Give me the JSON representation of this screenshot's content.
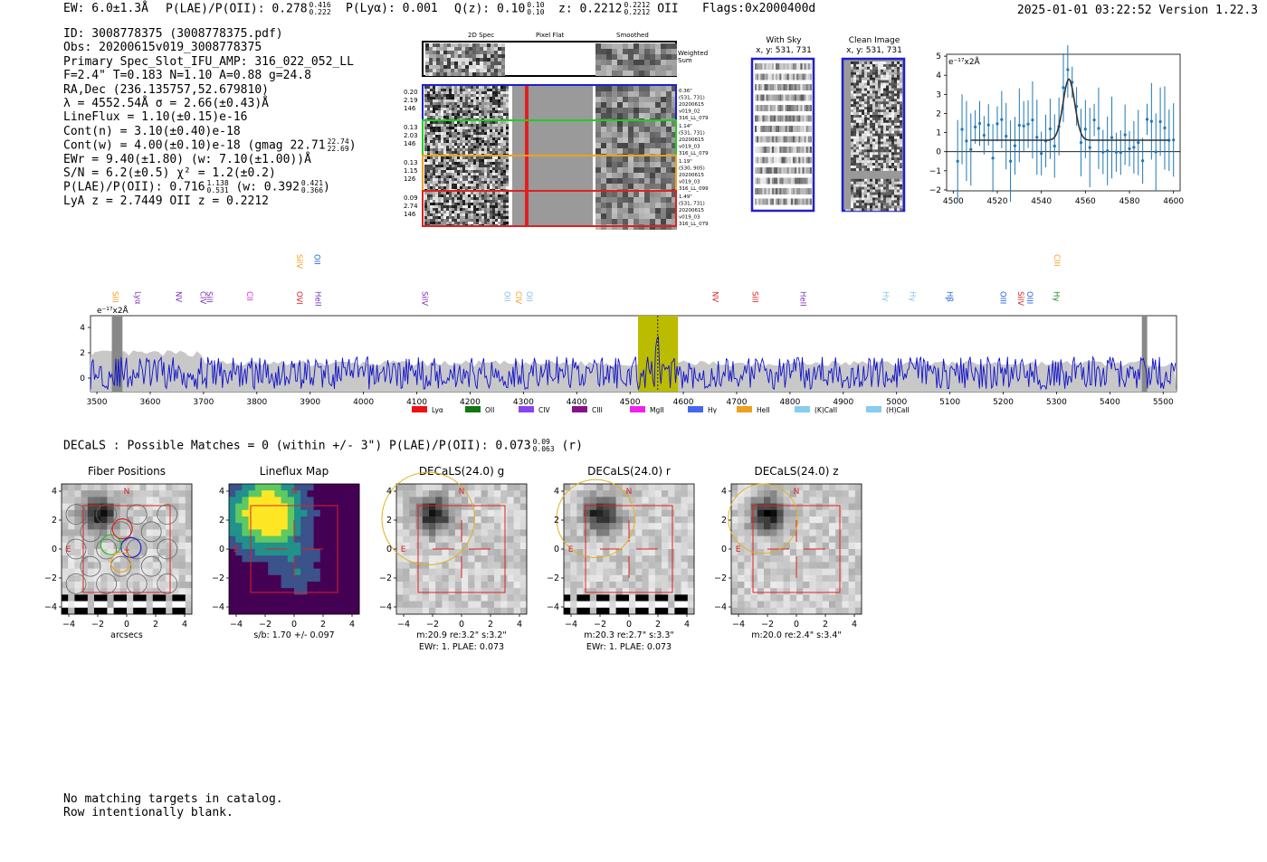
{
  "header": {
    "ew": "EW: 6.0±1.3Å",
    "plae_label": "P(LAE)/P(OII): 0.278",
    "plae_hi": "0.416",
    "plae_lo": "0.222",
    "plya": "P(Lyα): 0.001",
    "qz_label": "Q(z): 0.10",
    "qz_hi": "0.10",
    "qz_lo": "0.10",
    "z_label": "z: 0.2212",
    "z_hi": "0.2212",
    "z_lo": "0.2212",
    "z_line": "OII",
    "flags": "Flags:0x2000400d",
    "timestamp": "2025-01-01 03:22:52  Version 1.22.3"
  },
  "info": {
    "id": "ID: 3008778375 (3008778375.pdf)",
    "obs": "Obs: 20200615v019_3008778375",
    "primary": "Primary Spec_Slot_IFU_AMP: 316_022_052_LL",
    "fparams": "F=2.4\"  T=0.183  N=1.10  A=0.88  g=24.8",
    "radec": "RA,Dec (236.135757,52.679810)",
    "lambda": "λ = 4552.54Å  σ = 2.66(±0.43)Å",
    "lineflux": "LineFlux = 1.10(±0.15)e-16",
    "contn": "Cont(n) = 3.10(±0.40)e-18",
    "contw": "Cont(w) = 4.00(±0.10)e-18 (gmag 22.71",
    "contw_hi": "22.74",
    "contw_lo": "22.69",
    "ewr": "EWr = 9.40(±1.80) (w: 7.10(±1.00))Å",
    "sn": "S/N = 6.2(±0.5)  χ² = 1.2(±0.2)",
    "plae2": "P(LAE)/P(OII): 0.716",
    "plae2_hi": "1.138",
    "plae2_lo": "0.531",
    "plae2_w": "(w: 0.392",
    "plae2_w_hi": "0.421",
    "plae2_w_lo": "0.366",
    "lyaz": "LyA z = 2.7449  OII z = 0.2212"
  },
  "spec_panel": {
    "col_titles": [
      "2D Spec",
      "Pixel Flat",
      "Smoothed"
    ],
    "weighted_label": [
      "Weighted",
      "Sum"
    ],
    "rows": [
      {
        "stats": [
          "0.20",
          "2.19",
          "146"
        ],
        "color": "#1f1fcc",
        "info": [
          "0.36\"",
          "(531, 731)",
          "20200615",
          "v019_02",
          "316_LL_079"
        ]
      },
      {
        "stats": [
          "0.13",
          "2.03",
          "146"
        ],
        "color": "#22cc22",
        "info": [
          "1.14\"",
          "(531, 731)",
          "20200615",
          "v019_03",
          "316_LL_079"
        ]
      },
      {
        "stats": [
          "0.13",
          "1.15",
          "126"
        ],
        "color": "#f0a020",
        "info": [
          "1.19\"",
          "(530, 905)",
          "20200615",
          "v019_03",
          "316_LL_099"
        ]
      },
      {
        "stats": [
          "0.09",
          "2.74",
          "146"
        ],
        "color": "#dd2222",
        "info": [
          "1.49\"",
          "(531, 731)",
          "20200615",
          "v019_03",
          "316_LL_079"
        ]
      }
    ]
  },
  "sky_panel": {
    "with_sky_title": "With Sky",
    "with_sky_coords": "x, y: 531, 731",
    "clean_title": "Clean Image",
    "clean_coords": "x, y: 531, 731"
  },
  "fit_plot": {
    "unit_label": "e⁻¹⁷x2Å",
    "x_ticks": [
      "4500",
      "4520",
      "4540",
      "4560",
      "4580",
      "4600"
    ],
    "y_ticks": [
      "5",
      "4",
      "3",
      "2",
      "1",
      "0",
      "−1",
      "−2"
    ]
  },
  "full_spectrum": {
    "unit_label": "e⁻¹⁷x2Å",
    "x_ticks": [
      "3500",
      "3600",
      "3700",
      "3800",
      "3900",
      "4000",
      "4100",
      "4200",
      "4300",
      "4400",
      "4500",
      "4600",
      "4700",
      "4800",
      "4900",
      "5000",
      "5100",
      "5200",
      "5300",
      "5400",
      "5500"
    ],
    "y_ticks": [
      "4",
      "2",
      "0"
    ],
    "line_labels": [
      {
        "text": "SiII",
        "color": "#f0a020",
        "wl": 3530,
        "row": 2
      },
      {
        "text": "Lyα",
        "color": "#7a2db8",
        "wl": 3572,
        "row": 2
      },
      {
        "text": "NV",
        "color": "#7a2db8",
        "wl": 3648,
        "row": 2
      },
      {
        "text": "SiII",
        "color": "#7a2db8",
        "wl": 3706,
        "row": 2
      },
      {
        "text": "CIV",
        "color": "#7a2db8",
        "wl": 3694,
        "row": 2
      },
      {
        "text": "CII",
        "color": "#dd22dd",
        "wl": 3782,
        "row": 2
      },
      {
        "text": "OVI",
        "color": "#dd2222",
        "wl": 3875,
        "row": 2
      },
      {
        "text": "HeII",
        "color": "#7a2db8",
        "wl": 3910,
        "row": 2
      },
      {
        "text": "SiIV",
        "color": "#f0a020",
        "wl": 3875,
        "row": 1
      },
      {
        "text": "OII",
        "color": "#1f5fdd",
        "wl": 3908,
        "row": 1
      },
      {
        "text": "SiIV",
        "color": "#7a2db8",
        "wl": 4110,
        "row": 2
      },
      {
        "text": "OII",
        "color": "#80c0e8",
        "wl": 4265,
        "row": 2
      },
      {
        "text": "CIV",
        "color": "#f0a020",
        "wl": 4286,
        "row": 2
      },
      {
        "text": "OII",
        "color": "#80c0e8",
        "wl": 4306,
        "row": 2
      },
      {
        "text": "NV",
        "color": "#dd2222",
        "wl": 4655,
        "row": 2
      },
      {
        "text": "SiII",
        "color": "#dd2222",
        "wl": 4730,
        "row": 2
      },
      {
        "text": "HeII",
        "color": "#7a2db8",
        "wl": 4820,
        "row": 2
      },
      {
        "text": "Hγ",
        "color": "#80c0e8",
        "wl": 4975,
        "row": 2
      },
      {
        "text": "Hγ",
        "color": "#80c0e8",
        "wl": 5025,
        "row": 2
      },
      {
        "text": "Hβ",
        "color": "#1f5fdd",
        "wl": 5095,
        "row": 2
      },
      {
        "text": "OIII",
        "color": "#1f5fdd",
        "wl": 5195,
        "row": 2
      },
      {
        "text": "SiIV",
        "color": "#dd2222",
        "wl": 5228,
        "row": 2
      },
      {
        "text": "OIII",
        "color": "#1f5fdd",
        "wl": 5245,
        "row": 2
      },
      {
        "text": "Hγ",
        "color": "#118811",
        "wl": 5295,
        "row": 2
      },
      {
        "text": "CIII",
        "color": "#f0a020",
        "wl": 5296,
        "row": 1
      }
    ],
    "legend": [
      {
        "label": "Lyα",
        "color": "#ee1111"
      },
      {
        "label": "OII",
        "color": "#117711"
      },
      {
        "label": "CIV",
        "color": "#8844ee"
      },
      {
        "label": "CIII",
        "color": "#881188"
      },
      {
        "label": "MgII",
        "color": "#ee22ee"
      },
      {
        "label": "Hγ",
        "color": "#4466ee"
      },
      {
        "label": "HeII",
        "color": "#f0a020"
      },
      {
        "label": "(K)CaII",
        "color": "#88ccee"
      },
      {
        "label": "(H)CaII",
        "color": "#88ccee"
      }
    ]
  },
  "decals": {
    "line": "DECaLS : Possible Matches = 0 (within +/- 3\")  P(LAE)/P(OII): 0.073",
    "hi": "0.09",
    "lo": "0.063",
    "band": "(r)"
  },
  "cutouts": [
    {
      "title": "Fiber Positions",
      "caption": [
        "arcsecs"
      ]
    },
    {
      "title": "Lineflux Map",
      "caption": [
        "s/b: 1.70 +/- 0.097"
      ]
    },
    {
      "title": "DECaLS(24.0) g",
      "caption": [
        "m:20.9  re:3.2\"  s:3.2\"",
        "EWr: 1. PLAE: 0.073"
      ]
    },
    {
      "title": "DECaLS(24.0) r",
      "caption": [
        "m:20.3  re:2.7\"  s:3.3\"",
        "EWr: 1. PLAE: 0.073"
      ]
    },
    {
      "title": "DECaLS(24.0) z",
      "caption": [
        "m:20.0  re:2.4\"  s:3.4\""
      ]
    }
  ],
  "cutout_axis": {
    "x_ticks": [
      "−4",
      "−2",
      "0",
      "2",
      "4"
    ],
    "y_ticks": [
      "4",
      "2",
      "0",
      "−2",
      "−4"
    ],
    "north": "N",
    "east": "E"
  },
  "footer": {
    "line1": "No matching targets in catalog.",
    "line2": "Row intentionally blank."
  }
}
